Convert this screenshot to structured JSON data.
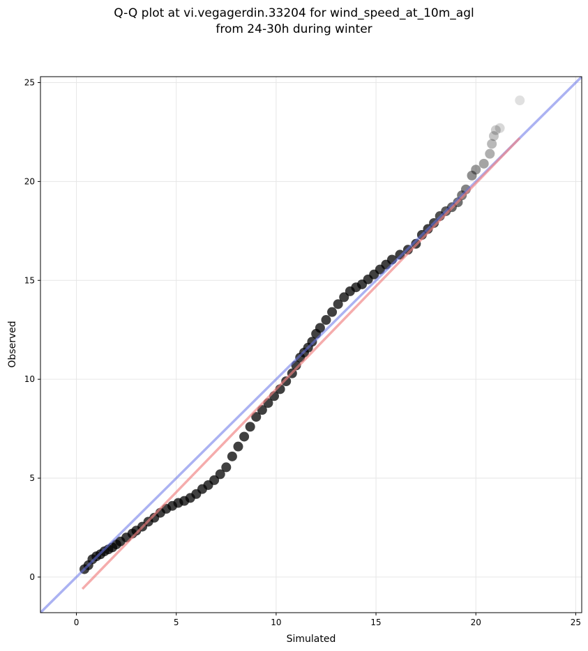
{
  "title_line1": "Q-Q plot at vi.vegagerdin.33204 for wind_speed_at_10m_agl",
  "title_line2": "from 24-30h during winter",
  "chart_data": {
    "type": "scatter",
    "xlabel": "Simulated",
    "ylabel": "Observed",
    "xlim": [
      -1.8,
      25.3
    ],
    "ylim": [
      -1.8,
      25.3
    ],
    "xticks": [
      0,
      5,
      10,
      15,
      20,
      25
    ],
    "yticks": [
      0,
      5,
      10,
      15,
      20,
      25
    ],
    "grid": true,
    "colors": {
      "points": "#000000",
      "reference_line": "#6672e8",
      "fit_line": "#f08080",
      "grid": "#e6e6e6"
    },
    "reference_line": {
      "x": [
        -1.8,
        25.3
      ],
      "y": [
        -1.8,
        25.3
      ]
    },
    "fit_line": {
      "x": [
        0.3,
        22.2
      ],
      "y": [
        -0.6,
        22.2
      ]
    },
    "quantiles": [
      [
        0.4,
        0.4
      ],
      [
        0.6,
        0.6
      ],
      [
        0.8,
        0.9
      ],
      [
        1.0,
        1.05
      ],
      [
        1.2,
        1.15
      ],
      [
        1.4,
        1.3
      ],
      [
        1.6,
        1.4
      ],
      [
        1.8,
        1.5
      ],
      [
        2.0,
        1.65
      ],
      [
        2.2,
        1.8
      ],
      [
        2.5,
        2.0
      ],
      [
        2.8,
        2.2
      ],
      [
        3.0,
        2.35
      ],
      [
        3.3,
        2.55
      ],
      [
        3.6,
        2.8
      ],
      [
        3.9,
        3.0
      ],
      [
        4.2,
        3.25
      ],
      [
        4.5,
        3.45
      ],
      [
        4.8,
        3.6
      ],
      [
        5.1,
        3.75
      ],
      [
        5.4,
        3.85
      ],
      [
        5.7,
        4.0
      ],
      [
        6.0,
        4.2
      ],
      [
        6.3,
        4.45
      ],
      [
        6.6,
        4.65
      ],
      [
        6.9,
        4.9
      ],
      [
        7.2,
        5.2
      ],
      [
        7.5,
        5.55
      ],
      [
        7.8,
        6.1
      ],
      [
        8.1,
        6.6
      ],
      [
        8.4,
        7.1
      ],
      [
        8.7,
        7.6
      ],
      [
        9.0,
        8.1
      ],
      [
        9.3,
        8.45
      ],
      [
        9.6,
        8.8
      ],
      [
        9.9,
        9.15
      ],
      [
        10.2,
        9.5
      ],
      [
        10.5,
        9.9
      ],
      [
        10.8,
        10.3
      ],
      [
        11.0,
        10.7
      ],
      [
        11.2,
        11.1
      ],
      [
        11.4,
        11.35
      ],
      [
        11.6,
        11.6
      ],
      [
        11.8,
        11.9
      ],
      [
        12.0,
        12.3
      ],
      [
        12.2,
        12.6
      ],
      [
        12.5,
        13.0
      ],
      [
        12.8,
        13.4
      ],
      [
        13.1,
        13.8
      ],
      [
        13.4,
        14.15
      ],
      [
        13.7,
        14.45
      ],
      [
        14.0,
        14.65
      ],
      [
        14.3,
        14.8
      ],
      [
        14.6,
        15.05
      ],
      [
        14.9,
        15.3
      ],
      [
        15.2,
        15.55
      ],
      [
        15.5,
        15.8
      ],
      [
        15.8,
        16.05
      ],
      [
        16.2,
        16.3
      ],
      [
        16.6,
        16.55
      ],
      [
        17.0,
        16.85
      ],
      [
        17.3,
        17.3
      ],
      [
        17.6,
        17.6
      ],
      [
        17.9,
        17.9
      ],
      [
        18.2,
        18.25
      ],
      [
        18.5,
        18.5
      ],
      [
        18.8,
        18.7
      ],
      [
        19.1,
        18.95
      ],
      [
        19.3,
        19.3
      ],
      [
        19.5,
        19.6
      ],
      [
        19.8,
        20.3
      ],
      [
        20.0,
        20.6
      ],
      [
        20.4,
        20.9
      ],
      [
        20.7,
        21.4
      ],
      [
        20.8,
        21.9
      ],
      [
        20.9,
        22.3
      ],
      [
        21.0,
        22.6
      ],
      [
        21.2,
        22.7
      ],
      [
        22.2,
        24.1
      ]
    ]
  }
}
